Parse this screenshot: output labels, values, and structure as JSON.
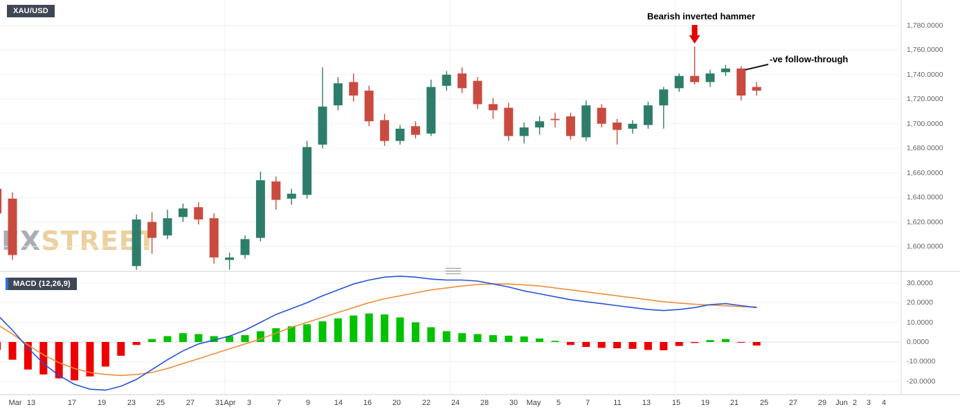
{
  "header": {
    "symbol_badge": "XAU/USD"
  },
  "macd_panel": {
    "badge": "MACD (12,26,9)"
  },
  "watermark": {
    "fx": "FX",
    "street": "STREET"
  },
  "annotations": {
    "hammer": {
      "text": "Bearish inverted hammer",
      "candle_index": 45
    },
    "follow": {
      "text": "-ve follow-through",
      "candle_index": 48
    }
  },
  "price_axis": [
    "1,780.0000",
    "1,760.0000",
    "1,740.0000",
    "1,720.0000",
    "1,700.0000",
    "1,680.0000",
    "1,660.0000",
    "1,640.0000",
    "1,620.0000",
    "1,600.0000"
  ],
  "macd_axis": [
    "30.0000",
    "20.0000",
    "10.0000",
    "0.0000",
    "-10.0000",
    "-20.0000"
  ],
  "time_axis": [
    {
      "label": "Mar",
      "x": 8
    },
    {
      "label": "13",
      "x": 45
    },
    {
      "label": "17",
      "x": 104
    },
    {
      "label": "19",
      "x": 147
    },
    {
      "label": "23",
      "x": 190
    },
    {
      "label": "25",
      "x": 232
    },
    {
      "label": "27",
      "x": 275
    },
    {
      "label": "31",
      "x": 317
    },
    {
      "label": "Apr",
      "x": 332
    },
    {
      "label": "3",
      "x": 360
    },
    {
      "label": "7",
      "x": 403
    },
    {
      "label": "9",
      "x": 445
    },
    {
      "label": "14",
      "x": 489
    },
    {
      "label": "16",
      "x": 531
    },
    {
      "label": "20",
      "x": 573
    },
    {
      "label": "22",
      "x": 616
    },
    {
      "label": "24",
      "x": 658
    },
    {
      "label": "28",
      "x": 700
    },
    {
      "label": "30",
      "x": 742
    },
    {
      "label": "May",
      "x": 771
    },
    {
      "label": "5",
      "x": 807
    },
    {
      "label": "7",
      "x": 849
    },
    {
      "label": "11",
      "x": 892
    },
    {
      "label": "13",
      "x": 934
    },
    {
      "label": "15",
      "x": 977
    },
    {
      "label": "19",
      "x": 1019
    },
    {
      "label": "21",
      "x": 1061
    },
    {
      "label": "25",
      "x": 1104
    },
    {
      "label": "27",
      "x": 1146
    },
    {
      "label": "29",
      "x": 1188
    },
    {
      "label": "Jun",
      "x": 1216
    },
    {
      "label": "2",
      "x": 1235
    },
    {
      "label": "3",
      "x": 1255
    },
    {
      "label": "4",
      "x": 1277
    }
  ],
  "colors": {
    "candle_up": "#2e7d6b",
    "candle_down": "#c94b3f",
    "macd_line": "#2753d4",
    "signal_line": "#ef8e38",
    "hist_positive": "#00c200",
    "hist_negative": "#ee0000",
    "annotation_arrow": "#e60000",
    "badge_background": "#3e4753",
    "watermark_fx": "#a9aeb6",
    "watermark_street": "#ecd09e"
  },
  "chart_data": [
    {
      "type": "candlestick",
      "title": "XAU/USD",
      "ylim": [
        1580,
        1790
      ],
      "grid": true,
      "candles_format": "[open, high, low, close], null = no candle plotted",
      "candles": [
        [
          1647,
          1650,
          1625,
          1627
        ],
        [
          1639,
          1644,
          1589,
          1593
        ],
        null,
        null,
        null,
        null,
        null,
        null,
        null,
        [
          1584,
          1626,
          1581,
          1622
        ],
        [
          1620,
          1628,
          1594,
          1607
        ],
        [
          1609,
          1630,
          1606,
          1623
        ],
        [
          1624,
          1635,
          1620,
          1631
        ],
        [
          1632,
          1636,
          1618,
          1622
        ],
        [
          1623,
          1627,
          1586,
          1591
        ],
        [
          1589,
          1595,
          1581,
          1591
        ],
        [
          1593,
          1609,
          1590,
          1606
        ],
        [
          1607,
          1661,
          1604,
          1654
        ],
        [
          1653,
          1657,
          1630,
          1638
        ],
        [
          1639,
          1647,
          1634,
          1643
        ],
        [
          1642,
          1686,
          1639,
          1681
        ],
        [
          1683,
          1746,
          1680,
          1714
        ],
        [
          1715,
          1738,
          1711,
          1733
        ],
        [
          1734,
          1741,
          1718,
          1723
        ],
        [
          1727,
          1731,
          1698,
          1702
        ],
        [
          1703,
          1708,
          1682,
          1686
        ],
        [
          1686,
          1699,
          1683,
          1696
        ],
        [
          1698,
          1702,
          1688,
          1691
        ],
        [
          1692,
          1736,
          1690,
          1730
        ],
        [
          1731,
          1743,
          1727,
          1740
        ],
        [
          1741,
          1746,
          1725,
          1729
        ],
        [
          1735,
          1738,
          1712,
          1716
        ],
        [
          1716,
          1721,
          1704,
          1711
        ],
        [
          1713,
          1717,
          1686,
          1690
        ],
        [
          1690,
          1701,
          1684,
          1697
        ],
        [
          1697,
          1706,
          1691,
          1702
        ],
        [
          1704,
          1709,
          1697,
          1703
        ],
        [
          1706,
          1709,
          1687,
          1690
        ],
        [
          1689,
          1719,
          1686,
          1715
        ],
        [
          1713,
          1716,
          1697,
          1700
        ],
        [
          1701,
          1704,
          1683,
          1695
        ],
        [
          1696,
          1703,
          1692,
          1700
        ],
        [
          1699,
          1718,
          1696,
          1715
        ],
        [
          1715,
          1730,
          1696,
          1728
        ],
        [
          1729,
          1741,
          1726,
          1739
        ],
        [
          1739,
          1763,
          1732,
          1734
        ],
        [
          1734,
          1744,
          1730,
          1741
        ],
        [
          1742,
          1748,
          1739,
          1745
        ],
        [
          1745,
          1747,
          1719,
          1723
        ],
        [
          1730,
          1734,
          1723,
          1727
        ]
      ]
    },
    {
      "type": "macd",
      "title": "MACD (12,26,9)",
      "ylim": [
        -25,
        35
      ],
      "grid": true,
      "histogram": [
        -4,
        -9,
        -14,
        -16.5,
        -18.5,
        -19.5,
        -17.5,
        -12.5,
        -7,
        -1.5,
        1.5,
        3,
        4.5,
        4,
        3,
        3,
        3.5,
        5.5,
        7,
        8,
        9,
        10.5,
        12,
        13.5,
        14.5,
        14,
        12.5,
        10,
        7.5,
        5.5,
        4.5,
        4,
        3.5,
        3.2,
        2.8,
        1.8,
        0.6,
        -1.5,
        -2.5,
        -3,
        -3.2,
        -3.5,
        -4,
        -4.2,
        -2,
        -0.5,
        1,
        1.5,
        -0.3,
        -1.8
      ],
      "macd_line": [
        14,
        6,
        -3,
        -11,
        -17,
        -21.5,
        -24,
        -24.5,
        -22.5,
        -19,
        -14,
        -9,
        -4.5,
        -1,
        1,
        3,
        6,
        10,
        14,
        17,
        20,
        23.5,
        26.5,
        29.5,
        31.5,
        33,
        33.5,
        33,
        32,
        31.5,
        31.5,
        31,
        29.5,
        28,
        26,
        24.5,
        23,
        21.5,
        20.5,
        19.5,
        18.5,
        17.5,
        16.5,
        16,
        16.5,
        17.5,
        19,
        19.5,
        18.5,
        17.5
      ],
      "signal_line": [
        9,
        4,
        -1.5,
        -6.5,
        -10.5,
        -13.5,
        -15.5,
        -16.5,
        -17,
        -16.5,
        -15.5,
        -13.5,
        -11,
        -8.5,
        -6,
        -3.5,
        -1,
        1.5,
        4.5,
        7.5,
        10,
        12.5,
        15,
        17.5,
        20,
        22,
        23.5,
        25,
        26.5,
        27.5,
        28.5,
        29.2,
        29.5,
        29.5,
        29,
        28.5,
        27.5,
        26.5,
        25.5,
        24.5,
        23.5,
        22.5,
        21.5,
        20.5,
        19.8,
        19.2,
        18.8,
        18.4,
        18,
        17.8
      ]
    }
  ]
}
